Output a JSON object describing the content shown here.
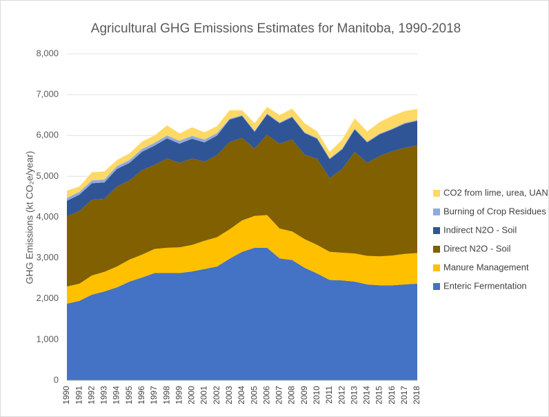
{
  "chart_data": {
    "type": "stacked-area",
    "title": "Agricultural GHG Emissions Estimates for Manitoba, 1990-2018",
    "y_label": "GHG Emissions (kt CO₂e/year)",
    "categories": [
      "1990",
      "1991",
      "1992",
      "1993",
      "1994",
      "1995",
      "1996",
      "1997",
      "1998",
      "1999",
      "2000",
      "2001",
      "2002",
      "2003",
      "2004",
      "2005",
      "2006",
      "2007",
      "2008",
      "2009",
      "2010",
      "2011",
      "2012",
      "2013",
      "2014",
      "2015",
      "2016",
      "2017",
      "2018"
    ],
    "ylim": [
      0,
      8000
    ],
    "yticks": [
      0,
      {
        "value": 1000,
        "label": "1,000"
      },
      {
        "value": 2000,
        "label": "2,000"
      },
      {
        "value": 3000,
        "label": "3,000"
      },
      {
        "value": 4000,
        "label": "4,000"
      },
      {
        "value": 5000,
        "label": "5,000"
      },
      {
        "value": 6000,
        "label": "6,000"
      },
      {
        "value": 7000,
        "label": "7,000"
      },
      {
        "value": 8000,
        "label": "8,000"
      }
    ],
    "grid": true,
    "legend": "right",
    "series": [
      {
        "name": "Enteric Fermentation",
        "color": "#4472c4",
        "values": [
          1880,
          1950,
          2100,
          2180,
          2280,
          2420,
          2520,
          2630,
          2630,
          2630,
          2670,
          2730,
          2790,
          2980,
          3150,
          3250,
          3250,
          2990,
          2950,
          2760,
          2620,
          2460,
          2450,
          2420,
          2350,
          2330,
          2330,
          2350,
          2370
        ]
      },
      {
        "name": "Manure Management",
        "color": "#ffc000",
        "values": [
          420,
          420,
          470,
          480,
          510,
          540,
          560,
          590,
          620,
          630,
          650,
          690,
          720,
          720,
          770,
          780,
          800,
          730,
          700,
          700,
          700,
          690,
          680,
          690,
          700,
          710,
          730,
          750,
          750
        ]
      },
      {
        "name": "Direct N2O - Soil",
        "color": "#806000",
        "values": [
          1720,
          1780,
          1860,
          1790,
          1960,
          1940,
          2070,
          2060,
          2190,
          2070,
          2120,
          1940,
          2010,
          2140,
          2020,
          1650,
          1970,
          2080,
          2250,
          2070,
          2110,
          1810,
          2050,
          2490,
          2280,
          2460,
          2550,
          2600,
          2640
        ]
      },
      {
        "name": "Indirect N2O - Soil",
        "color": "#2f5597",
        "values": [
          380,
          400,
          400,
          400,
          430,
          430,
          450,
          470,
          490,
          470,
          480,
          470,
          480,
          550,
          540,
          410,
          500,
          500,
          550,
          530,
          490,
          460,
          480,
          550,
          500,
          530,
          540,
          590,
          600
        ]
      },
      {
        "name": "Burning of Crop Residues",
        "color": "#8faadc",
        "values": [
          70,
          70,
          70,
          70,
          70,
          70,
          70,
          70,
          70,
          70,
          70,
          70,
          60,
          20,
          20,
          20,
          20,
          20,
          20,
          20,
          20,
          20,
          20,
          20,
          20,
          20,
          20,
          20,
          20
        ]
      },
      {
        "name": "CO2 from lime, urea, UAN",
        "color": "#ffd966",
        "values": [
          180,
          130,
          200,
          200,
          150,
          160,
          180,
          180,
          250,
          180,
          210,
          180,
          170,
          210,
          120,
          190,
          160,
          180,
          190,
          220,
          160,
          160,
          220,
          250,
          250,
          280,
          310,
          290,
          270
        ]
      }
    ]
  }
}
